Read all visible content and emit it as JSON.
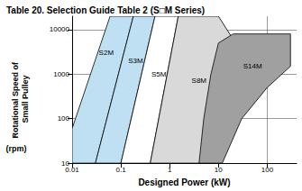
{
  "chart_data": {
    "type": "region",
    "title": "Table 20. Selection Guide Table 2 (S□M Series)",
    "xlabel": "Designed Power (kW)",
    "ylabel": "Rotational Speed of Small Pulley",
    "ylabel_unit": "(rpm)",
    "log": true,
    "grid": true,
    "xlim": [
      0.01,
      400
    ],
    "xticks": [
      0.01,
      0.1,
      1,
      10,
      100
    ],
    "ylim": [
      10,
      20000
    ],
    "yticks": [
      10,
      100,
      1000,
      10000
    ],
    "series": [
      {
        "name": "S2M",
        "color": "#bfe0f2",
        "polygon": [
          [
            0.01,
            10
          ],
          [
            0.01,
            60
          ],
          [
            0.06,
            20000
          ],
          [
            0.18,
            20000
          ],
          [
            0.03,
            10
          ]
        ],
        "label_at": [
          0.05,
          3000
        ]
      },
      {
        "name": "S3M",
        "color": "#bfe0f2",
        "polygon": [
          [
            0.03,
            10
          ],
          [
            0.18,
            20000
          ],
          [
            0.5,
            20000
          ],
          [
            0.1,
            10
          ]
        ],
        "label_at": [
          0.2,
          2000
        ]
      },
      {
        "name": "S5M",
        "color": "#ffffff",
        "polygon": [
          [
            0.1,
            10
          ],
          [
            0.5,
            20000
          ],
          [
            1.5,
            20000
          ],
          [
            0.4,
            10
          ]
        ],
        "label_at": [
          0.6,
          1000
        ]
      },
      {
        "name": "S8M",
        "color": "#d9d9d9",
        "polygon": [
          [
            0.4,
            10
          ],
          [
            1.5,
            20000
          ],
          [
            10,
            20000
          ],
          [
            30,
            3000
          ],
          [
            30,
            600
          ],
          [
            10,
            100
          ],
          [
            4,
            10
          ]
        ],
        "label_at": [
          4,
          700
        ]
      },
      {
        "name": "S14M",
        "color": "#a0a0a0",
        "polygon": [
          [
            4,
            10
          ],
          [
            5,
            100
          ],
          [
            7,
            1000
          ],
          [
            10,
            5000
          ],
          [
            20,
            8000
          ],
          [
            300,
            8000
          ],
          [
            300,
            1500
          ],
          [
            100,
            500
          ],
          [
            30,
            100
          ],
          [
            12,
            10
          ]
        ],
        "label_at": [
          50,
          1500
        ]
      }
    ]
  }
}
